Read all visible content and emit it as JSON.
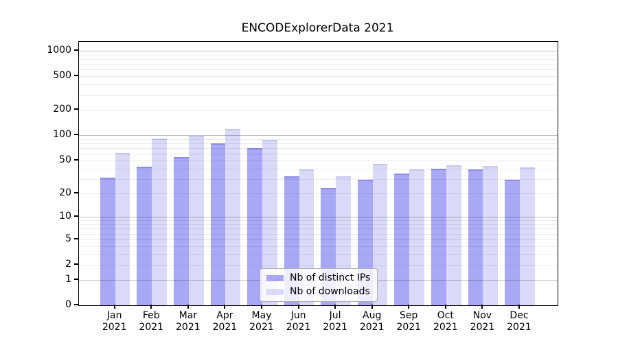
{
  "chart_data": {
    "type": "bar",
    "title": "ENCODExplorerData 2021",
    "year": "2021",
    "categories": [
      "Jan",
      "Feb",
      "Mar",
      "Apr",
      "May",
      "Jun",
      "Jul",
      "Aug",
      "Sep",
      "Oct",
      "Nov",
      "Dec"
    ],
    "series": [
      {
        "name": "Nb of distinct IPs",
        "color": "#a8a8f6",
        "values": [
          31,
          42,
          55,
          80,
          70,
          32,
          23,
          29,
          35,
          40,
          39,
          29
        ]
      },
      {
        "name": "Nb of downloads",
        "color": "#d9d9f8",
        "values": [
          62,
          92,
          98,
          120,
          88,
          39,
          32,
          45,
          39,
          44,
          43,
          41
        ]
      }
    ],
    "xlabel": "",
    "ylabel": "",
    "y_scale": "log10(1+y)",
    "ylim": [
      0,
      1276
    ],
    "y_ticks": [
      0,
      1,
      2,
      5,
      10,
      20,
      50,
      100,
      200,
      500,
      1000
    ],
    "grid": {
      "major_at": [
        1,
        10,
        100,
        1000
      ],
      "major_color": "#c2c2c2",
      "minor_color": "#ebebeb",
      "drawn_over_bars": true
    },
    "legend_position": "lower center",
    "spine_color": "#000000",
    "background_color": "#ffffff"
  }
}
